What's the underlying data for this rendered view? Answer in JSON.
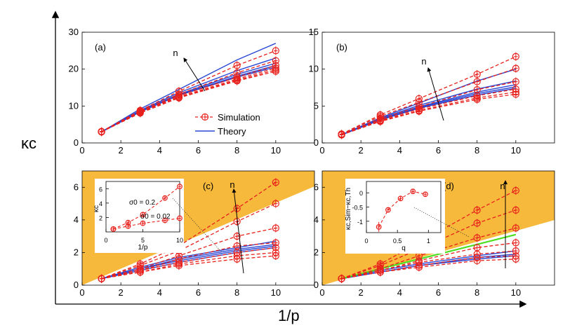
{
  "figure": {
    "ylabel": "κc",
    "xlabel": "1/p"
  },
  "colors": {
    "simulation": "#e8201c",
    "theory": "#2a47d4",
    "shade": "#f7b93c",
    "highlight": "#4cdf1f"
  },
  "chart_data": [
    {
      "type": "line",
      "panel": "(a)",
      "xlim": [
        0,
        12
      ],
      "ylim": [
        0,
        30
      ],
      "xticks": [
        0,
        2,
        4,
        6,
        8,
        10
      ],
      "yticks": [
        0,
        10,
        20,
        30
      ],
      "x": [
        1,
        3,
        5,
        8,
        10
      ],
      "arrow_label": "n",
      "legend": {
        "simulation": "Simulation",
        "theory": "Theory"
      },
      "simulation": [
        [
          3.1,
          8.8,
          14.0,
          21.0,
          25.0
        ],
        [
          3.1,
          8.6,
          13.2,
          19.0,
          22.3
        ],
        [
          3.0,
          8.4,
          12.8,
          17.8,
          21.0
        ],
        [
          3.0,
          8.3,
          12.5,
          17.3,
          20.3
        ],
        [
          3.0,
          8.2,
          12.3,
          17.0,
          19.8
        ],
        [
          3.0,
          8.1,
          12.2,
          16.8,
          19.4
        ]
      ],
      "theory": [
        [
          3.0,
          9.2,
          14.5,
          22.5,
          27.0
        ],
        [
          3.0,
          8.8,
          13.6,
          19.6,
          23.0
        ],
        [
          3.0,
          8.6,
          13.2,
          18.6,
          21.6
        ],
        [
          3.0,
          8.5,
          13.0,
          18.1,
          21.0
        ],
        [
          3.0,
          8.4,
          12.9,
          17.8,
          20.6
        ]
      ]
    },
    {
      "type": "line",
      "panel": "(b)",
      "xlim": [
        0,
        12
      ],
      "ylim": [
        0,
        15
      ],
      "xticks": [
        0,
        2,
        4,
        6,
        8,
        10
      ],
      "yticks": [
        0,
        5,
        10,
        15
      ],
      "x": [
        1,
        3,
        5,
        8,
        10
      ],
      "arrow_label": "n",
      "simulation": [
        [
          1.2,
          3.8,
          6.0,
          9.3,
          11.7
        ],
        [
          1.2,
          3.6,
          5.5,
          8.3,
          10.1
        ],
        [
          1.1,
          3.3,
          4.9,
          7.2,
          8.3
        ],
        [
          1.1,
          3.1,
          4.6,
          6.4,
          7.3
        ],
        [
          1.1,
          3.0,
          4.4,
          6.1,
          6.9
        ],
        [
          1.1,
          2.9,
          4.3,
          5.9,
          6.6
        ]
      ],
      "theory": [
        [
          1.1,
          3.4,
          5.4,
          8.4,
          10.0
        ],
        [
          1.1,
          3.3,
          5.1,
          7.3,
          8.4
        ],
        [
          1.1,
          3.2,
          4.9,
          6.9,
          7.9
        ],
        [
          1.1,
          3.2,
          4.8,
          6.7,
          7.6
        ],
        [
          1.1,
          3.1,
          4.7,
          6.5,
          7.4
        ]
      ]
    },
    {
      "type": "line",
      "panel": "(c)",
      "xlim": [
        0,
        12
      ],
      "ylim": [
        0,
        7
      ],
      "xticks": [
        0,
        2,
        4,
        6,
        8,
        10
      ],
      "yticks": [
        0,
        2,
        4,
        6
      ],
      "x": [
        1,
        3,
        5,
        8,
        10
      ],
      "arrow_label": "n",
      "simulation": [
        [
          0.4,
          1.3,
          2.4,
          4.7,
          6.3
        ],
        [
          0.4,
          1.2,
          2.1,
          3.9,
          5.0
        ],
        [
          0.4,
          1.0,
          1.8,
          3.0,
          3.5
        ],
        [
          0.4,
          0.9,
          1.6,
          2.4,
          2.6
        ],
        [
          0.4,
          0.9,
          1.4,
          2.0,
          2.3
        ],
        [
          0.4,
          0.8,
          1.3,
          1.8,
          2.0
        ],
        [
          0.4,
          0.8,
          1.2,
          1.6,
          1.8
        ]
      ],
      "theory": [
        [
          0.4,
          1.1,
          1.7,
          2.3,
          2.7
        ],
        [
          0.4,
          1.0,
          1.6,
          2.2,
          2.5
        ],
        [
          0.4,
          1.0,
          1.5,
          2.1,
          2.4
        ],
        [
          0.4,
          0.9,
          1.4,
          2.0,
          2.3
        ]
      ],
      "inset": {
        "ylabel": "κc",
        "xlabel": "1/p",
        "xlim": [
          0,
          10
        ],
        "ylim": [
          0,
          7
        ],
        "xticks": [
          0,
          5,
          10
        ],
        "yticks": [
          2,
          4,
          6
        ],
        "x": [
          1,
          3,
          5,
          8,
          10
        ],
        "series": [
          {
            "name": "σ0 = 0.2",
            "values": [
              0.4,
              1.3,
              2.4,
              4.7,
              6.3
            ]
          },
          {
            "name": "σ0 = 0.02",
            "values": [
              0.4,
              0.8,
              1.2,
              1.6,
              1.9
            ]
          }
        ]
      }
    },
    {
      "type": "line",
      "panel": "(d)",
      "xlim": [
        0,
        12
      ],
      "ylim": [
        0,
        7
      ],
      "xticks": [
        0,
        2,
        4,
        6,
        8,
        10
      ],
      "yticks": [
        0,
        2,
        4,
        6
      ],
      "x": [
        1,
        3,
        5,
        8,
        10
      ],
      "arrow_label": "n",
      "simulation": [
        [
          0.4,
          1.3,
          2.6,
          4.6,
          5.8
        ],
        [
          0.4,
          1.2,
          2.2,
          3.8,
          4.6
        ],
        [
          0.4,
          1.0,
          1.8,
          2.9,
          3.5
        ],
        [
          0.4,
          0.9,
          1.5,
          2.3,
          2.6
        ],
        [
          0.4,
          0.9,
          1.4,
          1.9,
          2.1
        ],
        [
          0.4,
          0.8,
          1.2,
          1.7,
          1.8
        ],
        [
          0.4,
          0.8,
          1.1,
          1.5,
          1.6
        ]
      ],
      "theory": [
        [
          0.4,
          0.9,
          1.3,
          1.8,
          2.1
        ],
        [
          0.4,
          0.8,
          1.2,
          1.7,
          1.9
        ],
        [
          0.4,
          0.8,
          1.2,
          1.6,
          1.8
        ]
      ],
      "green": {
        "x": [
          1,
          10
        ],
        "values": [
          0.4,
          3.1
        ]
      },
      "inset": {
        "ylabel": "κc,Sim−κc,Th",
        "xlabel": "q",
        "xlim": [
          0,
          1.2
        ],
        "ylim": [
          -1.4,
          0.4
        ],
        "xticks": [
          0,
          0.5,
          1
        ],
        "yticks": [
          -1,
          -0.5,
          0
        ],
        "x": [
          0.2,
          0.35,
          0.55,
          0.75,
          0.95
        ],
        "values": [
          -1.2,
          -0.6,
          -0.2,
          0.05,
          -0.05
        ]
      }
    }
  ]
}
